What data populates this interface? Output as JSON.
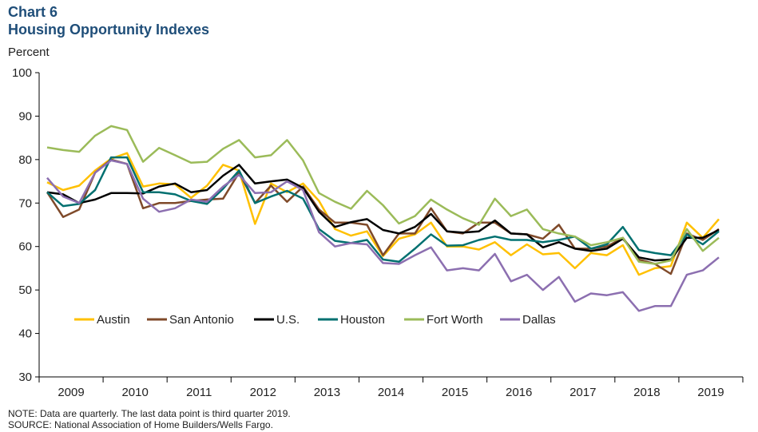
{
  "header": {
    "chart_number": "Chart 6",
    "title": "Housing Opportunity Indexes"
  },
  "unit_label": "Percent",
  "notes": {
    "note": "NOTE: Data are quarterly. The last data point is third quarter 2019.",
    "source": "SOURCE: National Association of Home Builders/Wells Fargo."
  },
  "chart_data": {
    "type": "line",
    "title": "Housing Opportunity Indexes",
    "ylabel": "Percent",
    "ylim": [
      30,
      100
    ],
    "yticks": [
      30,
      40,
      50,
      60,
      70,
      80,
      90,
      100
    ],
    "xticks": [
      "2009",
      "2010",
      "2011",
      "2012",
      "2013",
      "2014",
      "2015",
      "2016",
      "2017",
      "2018",
      "2019"
    ],
    "x": [
      "2009 Q1",
      "2009 Q2",
      "2009 Q3",
      "2009 Q4",
      "2010 Q1",
      "2010 Q2",
      "2010 Q3",
      "2010 Q4",
      "2011 Q1",
      "2011 Q2",
      "2011 Q3",
      "2011 Q4",
      "2012 Q1",
      "2012 Q2",
      "2012 Q3",
      "2012 Q4",
      "2013 Q1",
      "2013 Q2",
      "2013 Q3",
      "2013 Q4",
      "2014 Q1",
      "2014 Q2",
      "2014 Q3",
      "2014 Q4",
      "2015 Q1",
      "2015 Q2",
      "2015 Q3",
      "2015 Q4",
      "2016 Q1",
      "2016 Q2",
      "2016 Q3",
      "2016 Q4",
      "2017 Q1",
      "2017 Q2",
      "2017 Q3",
      "2017 Q4",
      "2018 Q1",
      "2018 Q2",
      "2018 Q3",
      "2018 Q4",
      "2019 Q1",
      "2019 Q2",
      "2019 Q3"
    ],
    "grid": false,
    "legend_position": "inside-bottom",
    "series": [
      {
        "name": "Austin",
        "color": "#ffc000",
        "values": [
          74.8,
          73.0,
          74.0,
          77.5,
          80.2,
          81.5,
          73.8,
          74.5,
          74.3,
          71.2,
          74.0,
          78.8,
          77.5,
          65.2,
          74.5,
          72.5,
          74.5,
          70.5,
          64.0,
          62.5,
          63.5,
          57.8,
          61.8,
          62.8,
          65.5,
          60.0,
          60.0,
          59.3,
          61.0,
          58.0,
          60.5,
          58.2,
          58.5,
          55.0,
          58.5,
          58.0,
          60.3,
          53.5,
          55.0,
          55.5,
          65.5,
          62.0,
          66.3
        ]
      },
      {
        "name": "San Antonio",
        "color": "#7f4a2a",
        "values": [
          72.5,
          66.8,
          68.5,
          77.0,
          80.0,
          79.0,
          68.8,
          70.0,
          70.0,
          70.5,
          70.8,
          71.0,
          77.0,
          70.0,
          74.0,
          70.3,
          73.8,
          68.5,
          65.5,
          65.5,
          65.0,
          58.0,
          63.0,
          63.0,
          68.8,
          63.5,
          63.0,
          65.5,
          65.5,
          63.0,
          62.8,
          61.8,
          65.0,
          59.5,
          59.5,
          60.0,
          62.0,
          57.0,
          56.0,
          53.7,
          63.0,
          61.5,
          64.0
        ]
      },
      {
        "name": "U.S.",
        "color": "#000000",
        "values": [
          72.5,
          72.0,
          70.0,
          70.8,
          72.3,
          72.3,
          72.2,
          73.8,
          74.5,
          72.5,
          73.0,
          76.3,
          78.8,
          74.5,
          75.0,
          75.4,
          73.5,
          68.0,
          64.5,
          65.6,
          66.3,
          63.8,
          63.0,
          64.5,
          67.5,
          63.5,
          63.2,
          63.5,
          66.0,
          63.0,
          62.8,
          59.8,
          61.0,
          59.5,
          59.0,
          59.5,
          61.8,
          57.5,
          56.8,
          57.0,
          62.0,
          62.0,
          63.8
        ]
      },
      {
        "name": "Houston",
        "color": "#007070",
        "values": [
          72.5,
          69.3,
          69.8,
          73.0,
          80.5,
          80.5,
          72.5,
          72.5,
          72.0,
          70.5,
          69.8,
          73.3,
          77.5,
          70.0,
          71.5,
          72.8,
          71.0,
          64.0,
          61.3,
          60.8,
          61.5,
          57.0,
          56.5,
          59.5,
          62.8,
          60.2,
          60.3,
          61.5,
          62.3,
          61.5,
          61.5,
          61.0,
          61.5,
          62.3,
          59.5,
          60.5,
          64.5,
          59.2,
          58.5,
          58.0,
          62.8,
          60.5,
          63.5
        ]
      },
      {
        "name": "Fort Worth",
        "color": "#9bbb59",
        "values": [
          82.8,
          82.2,
          81.8,
          85.5,
          87.7,
          86.8,
          79.5,
          82.7,
          81.0,
          79.3,
          79.5,
          82.5,
          84.5,
          80.5,
          81.0,
          84.5,
          79.8,
          72.3,
          70.3,
          68.7,
          72.8,
          69.5,
          65.3,
          67.0,
          70.8,
          68.5,
          66.5,
          65.0,
          71.0,
          67.0,
          68.5,
          64.0,
          63.0,
          62.3,
          60.3,
          61.0,
          62.0,
          56.5,
          56.0,
          56.8,
          64.0,
          59.0,
          62.0
        ]
      },
      {
        "name": "Dallas",
        "color": "#8c6fb0",
        "values": [
          75.8,
          71.5,
          70.0,
          77.0,
          79.8,
          79.0,
          71.0,
          68.0,
          68.8,
          70.8,
          70.3,
          73.8,
          76.5,
          72.3,
          72.5,
          75.0,
          73.0,
          63.3,
          60.0,
          60.8,
          60.5,
          56.2,
          56.0,
          58.0,
          59.8,
          54.5,
          55.0,
          54.5,
          58.3,
          52.0,
          53.5,
          50.0,
          53.0,
          47.3,
          49.2,
          48.8,
          49.5,
          45.2,
          46.3,
          46.3,
          53.5,
          54.5,
          57.5
        ]
      }
    ]
  }
}
